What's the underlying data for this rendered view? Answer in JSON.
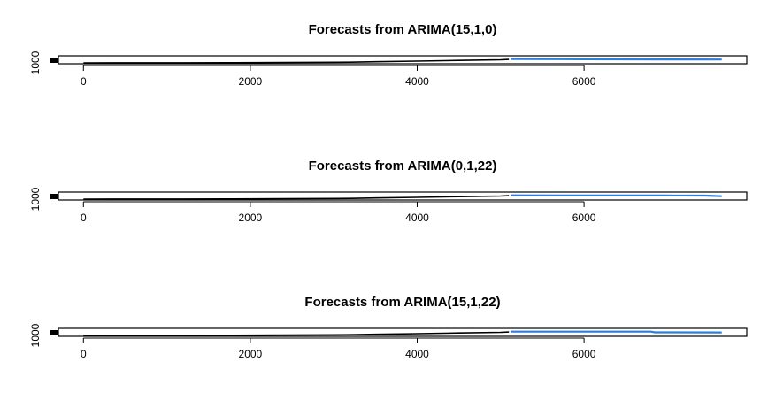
{
  "chart_data": [
    {
      "type": "line",
      "title": "Forecasts from ARIMA(15,1,0)",
      "xlabel": "",
      "ylabel": "",
      "xlim": [
        -300,
        7950
      ],
      "ylim": [
        0,
        2000
      ],
      "x_ticks": [
        0,
        2000,
        4000,
        6000
      ],
      "x_tick_labels": [
        "0",
        "2000",
        "4000",
        "6000"
      ],
      "y_ticks": [
        1000
      ],
      "y_tick_labels": [
        "1000"
      ],
      "series": [
        {
          "x": [
            0,
            500,
            1200,
            1800,
            2400,
            3200,
            3500,
            4000,
            4500,
            5000,
            5100
          ],
          "y": [
            10,
            20,
            40,
            70,
            120,
            220,
            360,
            560,
            800,
            1000,
            1120
          ]
        },
        {
          "x": [
            5120,
            6000,
            7000,
            7650
          ],
          "y": [
            1250,
            1180,
            1120,
            1100
          ],
          "color": "#2e7fd8"
        }
      ],
      "colors": {
        "series": "#000000",
        "forecast": "#2e7fd8"
      }
    },
    {
      "type": "line",
      "title": "Forecasts from ARIMA(0,1,22)",
      "xlabel": "",
      "ylabel": "",
      "xlim": [
        -300,
        7950
      ],
      "ylim": [
        0,
        2000
      ],
      "x_ticks": [
        0,
        2000,
        4000,
        6000
      ],
      "x_tick_labels": [
        "0",
        "2000",
        "4000",
        "6000"
      ],
      "y_ticks": [
        1000
      ],
      "y_tick_labels": [
        "1000"
      ],
      "series": [
        {
          "x": [
            0,
            500,
            1200,
            1800,
            2400,
            3200,
            3500,
            4000,
            4500,
            5000,
            5100
          ],
          "y": [
            10,
            20,
            40,
            70,
            120,
            220,
            360,
            560,
            800,
            1000,
            1120
          ]
        },
        {
          "x": [
            5120,
            6000,
            7000,
            7450,
            7650
          ],
          "y": [
            1220,
            1180,
            1160,
            1150,
            940
          ],
          "color": "#2e7fd8"
        }
      ],
      "colors": {
        "series": "#000000",
        "forecast": "#2e7fd8"
      }
    },
    {
      "type": "line",
      "title": "Forecasts from ARIMA(15,1,22)",
      "xlabel": "",
      "ylabel": "",
      "xlim": [
        -300,
        7950
      ],
      "ylim": [
        0,
        2000
      ],
      "x_ticks": [
        0,
        2000,
        4000,
        6000
      ],
      "x_tick_labels": [
        "0",
        "2000",
        "4000",
        "6000"
      ],
      "y_ticks": [
        1000
      ],
      "y_tick_labels": [
        "1000"
      ],
      "series": [
        {
          "x": [
            0,
            500,
            1200,
            1800,
            2400,
            3200,
            3500,
            4000,
            4500,
            5000,
            5100
          ],
          "y": [
            10,
            20,
            40,
            70,
            120,
            220,
            360,
            560,
            800,
            1000,
            1120
          ]
        },
        {
          "x": [
            5120,
            6000,
            6800,
            6850,
            7650
          ],
          "y": [
            1240,
            1230,
            1220,
            1000,
            980
          ],
          "color": "#2e7fd8"
        }
      ],
      "colors": {
        "series": "#000000",
        "forecast": "#2e7fd8"
      }
    }
  ]
}
